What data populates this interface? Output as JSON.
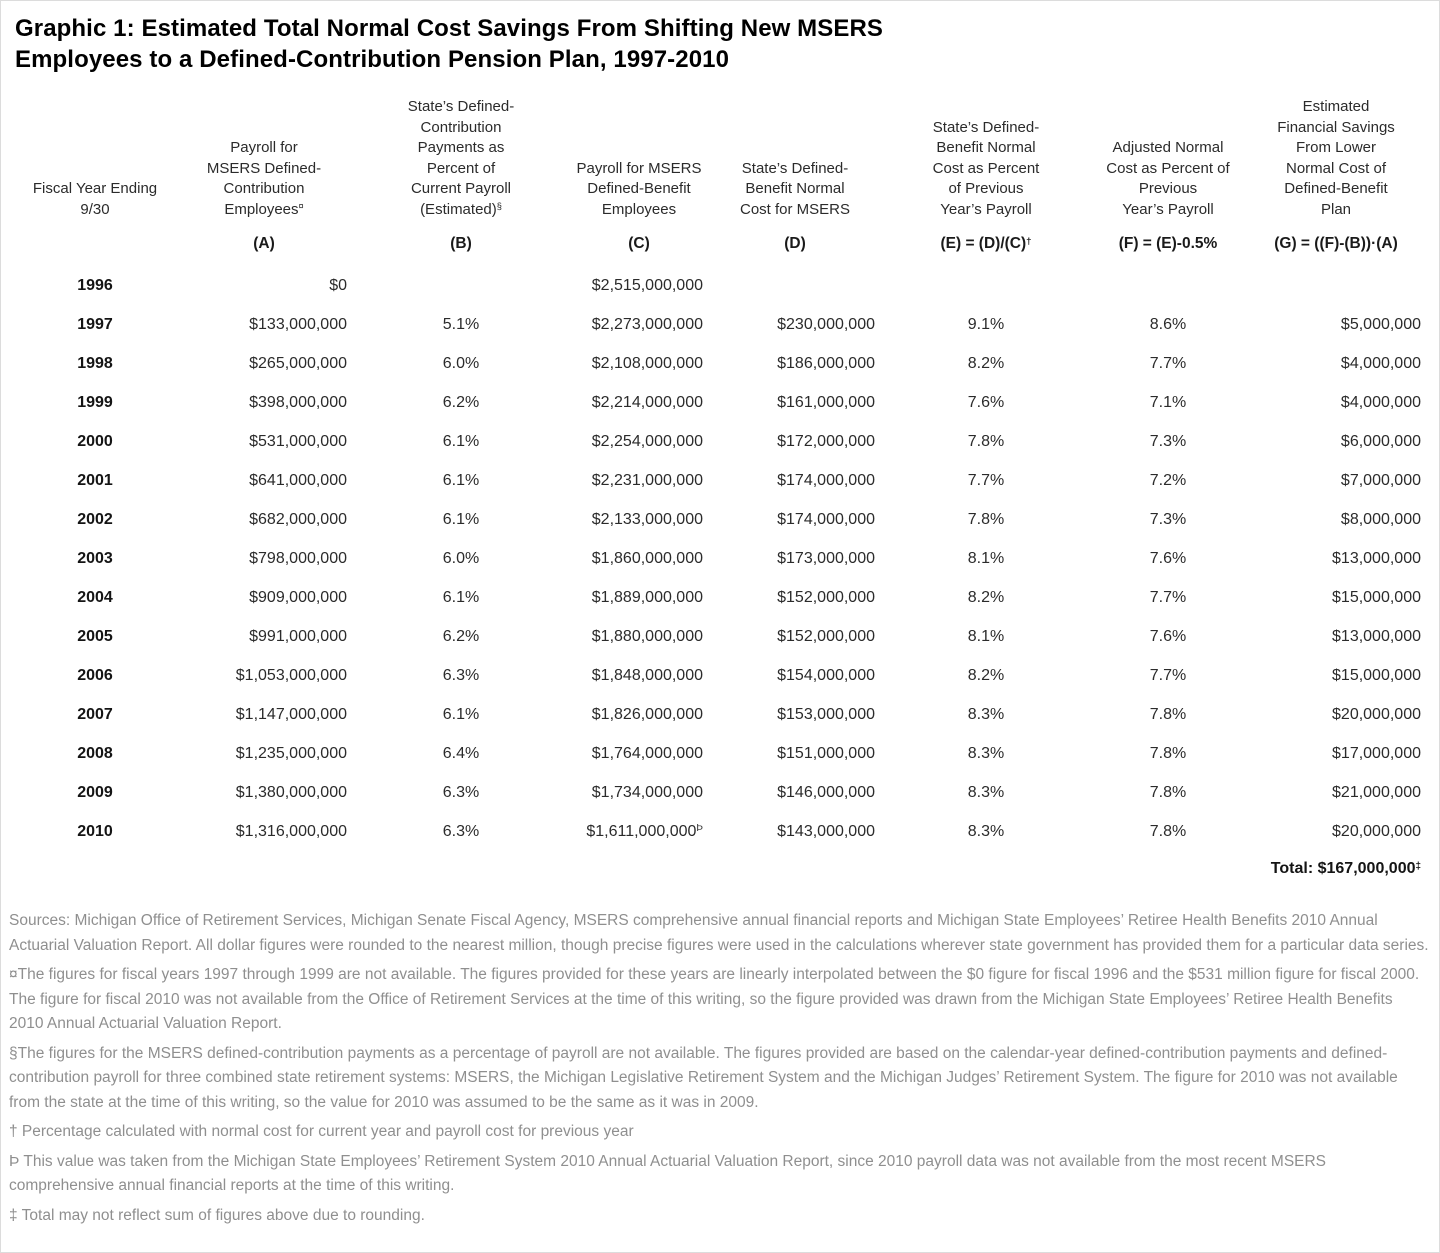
{
  "colors": {
    "table_text": "#2b2b2b",
    "title_text": "#000000",
    "footnote_text": "#8f8f8f",
    "background": "#ffffff"
  },
  "title": {
    "line1": "Graphic 1: Estimated Total Normal Cost Savings From Shifting New MSERS",
    "line2": "Employees to a Defined-Contribution Pension Plan, 1997-2010"
  },
  "chart_data": {
    "type": "table",
    "title": "Graphic 1: Estimated Total Normal Cost Savings From Shifting New MSERS Employees to a Defined-Contribution Pension Plan, 1997-2010",
    "columns": [
      {
        "id": "fiscal-year",
        "lines": [
          "Fiscal Year Ending",
          "9/30"
        ],
        "sup": "",
        "formula": "",
        "formula_sup": "",
        "align": "center"
      },
      {
        "id": "payroll-dc",
        "lines": [
          "Payroll for",
          "MSERS Defined-",
          "Contribution",
          "Employees"
        ],
        "sup": "¤",
        "formula": "(A)",
        "formula_sup": "",
        "align": "right"
      },
      {
        "id": "dc-payments-pct",
        "lines": [
          "State’s Defined-",
          "Contribution",
          "Payments as",
          "Percent of",
          "Current Payroll",
          "(Estimated)"
        ],
        "sup": "§",
        "formula": "(B)",
        "formula_sup": "",
        "align": "center"
      },
      {
        "id": "payroll-db",
        "lines": [
          "Payroll for MSERS",
          "Defined-Benefit",
          "Employees"
        ],
        "sup": "",
        "formula": "(C)",
        "formula_sup": "",
        "align": "right"
      },
      {
        "id": "db-normal-cost",
        "lines": [
          "State’s Defined-",
          "Benefit Normal",
          "Cost for MSERS"
        ],
        "sup": "",
        "formula": "(D)",
        "formula_sup": "",
        "align": "right"
      },
      {
        "id": "db-cost-pct",
        "lines": [
          "State’s Defined-",
          "Benefit Normal",
          "Cost as Percent",
          "of Previous",
          "Year’s Payroll"
        ],
        "sup": "",
        "formula": "(E) = (D)/(C)",
        "formula_sup": "†",
        "align": "center"
      },
      {
        "id": "adjusted-cost-pct",
        "lines": [
          "Adjusted Normal",
          "Cost as Percent of",
          "Previous",
          "Year’s Payroll"
        ],
        "sup": "",
        "formula": "(F) = (E)-0.5%",
        "formula_sup": "",
        "align": "center"
      },
      {
        "id": "estimated-savings",
        "lines": [
          "Estimated",
          "Financial Savings",
          "From Lower",
          "Normal Cost of",
          "Defined-Benefit",
          "Plan"
        ],
        "sup": "",
        "formula": "(G) = ((F)-(B))·(A)",
        "formula_sup": "",
        "align": "right"
      }
    ],
    "rows": [
      [
        "1996",
        "$0",
        "",
        "$2,515,000,000",
        "",
        "",
        "",
        ""
      ],
      [
        "1997",
        "$133,000,000",
        "5.1%",
        "$2,273,000,000",
        "$230,000,000",
        "9.1%",
        "8.6%",
        "$5,000,000"
      ],
      [
        "1998",
        "$265,000,000",
        "6.0%",
        "$2,108,000,000",
        "$186,000,000",
        "8.2%",
        "7.7%",
        "$4,000,000"
      ],
      [
        "1999",
        "$398,000,000",
        "6.2%",
        "$2,214,000,000",
        "$161,000,000",
        "7.6%",
        "7.1%",
        "$4,000,000"
      ],
      [
        "2000",
        "$531,000,000",
        "6.1%",
        "$2,254,000,000",
        "$172,000,000",
        "7.8%",
        "7.3%",
        "$6,000,000"
      ],
      [
        "2001",
        "$641,000,000",
        "6.1%",
        "$2,231,000,000",
        "$174,000,000",
        "7.7%",
        "7.2%",
        "$7,000,000"
      ],
      [
        "2002",
        "$682,000,000",
        "6.1%",
        "$2,133,000,000",
        "$174,000,000",
        "7.8%",
        "7.3%",
        "$8,000,000"
      ],
      [
        "2003",
        "$798,000,000",
        "6.0%",
        "$1,860,000,000",
        "$173,000,000",
        "8.1%",
        "7.6%",
        "$13,000,000"
      ],
      [
        "2004",
        "$909,000,000",
        "6.1%",
        "$1,889,000,000",
        "$152,000,000",
        "8.2%",
        "7.7%",
        "$15,000,000"
      ],
      [
        "2005",
        "$991,000,000",
        "6.2%",
        "$1,880,000,000",
        "$152,000,000",
        "8.1%",
        "7.6%",
        "$13,000,000"
      ],
      [
        "2006",
        "$1,053,000,000",
        "6.3%",
        "$1,848,000,000",
        "$154,000,000",
        "8.2%",
        "7.7%",
        "$15,000,000"
      ],
      [
        "2007",
        "$1,147,000,000",
        "6.1%",
        "$1,826,000,000",
        "$153,000,000",
        "8.3%",
        "7.8%",
        "$20,000,000"
      ],
      [
        "2008",
        "$1,235,000,000",
        "6.4%",
        "$1,764,000,000",
        "$151,000,000",
        "8.3%",
        "7.8%",
        "$17,000,000"
      ],
      [
        "2009",
        "$1,380,000,000",
        "6.3%",
        "$1,734,000,000",
        "$146,000,000",
        "8.3%",
        "7.8%",
        "$21,000,000"
      ],
      [
        "2010",
        "$1,316,000,000",
        "6.3%",
        {
          "text": "$1,611,000,000",
          "sup": "Þ"
        },
        "$143,000,000",
        "8.3%",
        "7.8%",
        "$20,000,000"
      ]
    ],
    "total_label": "Total:",
    "total_value": "$167,000,000",
    "total_sup": "‡"
  },
  "footnotes": [
    "Sources: Michigan Office of Retirement Services, Michigan Senate Fiscal Agency, MSERS comprehensive annual financial reports and Michigan State Employees’ Retiree Health Benefits 2010 Annual Actuarial Valuation Report. All dollar figures were rounded to the nearest million, though precise figures were used in the calculations wherever state government has provided them for a particular data series.",
    "¤The figures for fiscal years 1997 through 1999 are not available. The figures provided for these years are linearly interpolated between the $0 figure for fiscal 1996 and the $531 million figure for fiscal 2000. The figure for fiscal 2010 was not available from the Office of Retirement Services at the time of this writing, so the figure provided was drawn from the Michigan State Employees’ Retiree Health Benefits 2010 Annual Actuarial Valuation Report.",
    "§The figures for the MSERS defined-contribution payments as a percentage of payroll are not available. The figures provided are based on the calendar-year defined-contribution payments and defined-contribution payroll for three combined state retirement systems: MSERS, the Michigan Legislative Retirement System and the Michigan Judges’ Retirement System. The figure for 2010 was not available from the state at the time of this writing, so the value for 2010 was assumed to be the same as it was in 2009.",
    "† Percentage calculated with normal cost for current year and payroll cost for previous year",
    "Þ This value was taken from the Michigan State Employees’ Retirement System 2010 Annual Actuarial Valuation Report, since 2010 payroll data was not available from the most recent MSERS comprehensive annual financial reports at the time of this writing.",
    "‡ Total may not reflect sum of figures above due to rounding."
  ]
}
